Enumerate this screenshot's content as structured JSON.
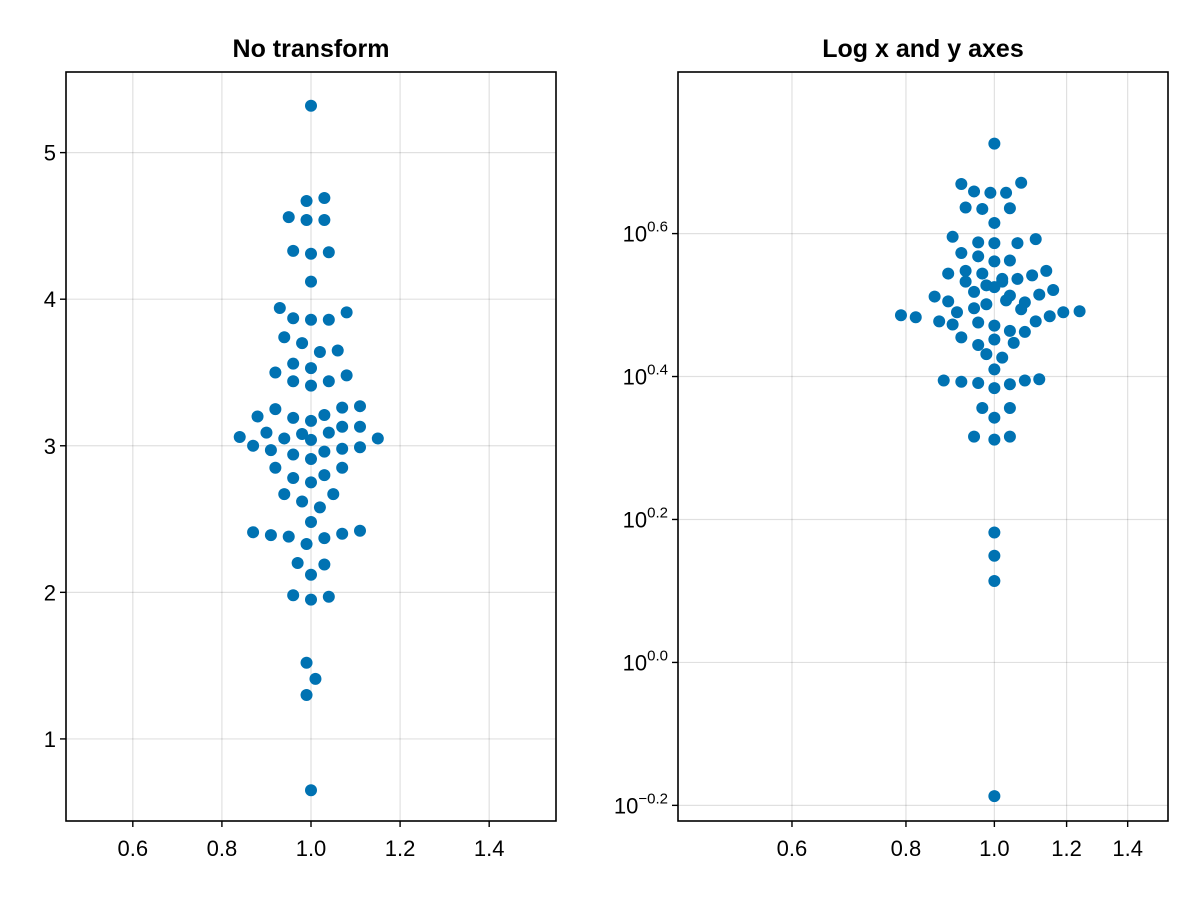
{
  "chart_data": [
    {
      "type": "scatter",
      "title": "No transform",
      "xscale": "linear",
      "yscale": "linear",
      "xlim": [
        0.45,
        1.55
      ],
      "ylim": [
        0.44,
        5.55
      ],
      "xticks": [
        0.6,
        0.8,
        1.0,
        1.2,
        1.4
      ],
      "xtick_labels": [
        "0.6",
        "0.8",
        "1.0",
        "1.2",
        "1.4"
      ],
      "yticks": [
        1,
        2,
        3,
        4,
        5
      ],
      "ytick_labels": [
        "1",
        "2",
        "3",
        "4",
        "5"
      ],
      "grid": true,
      "legend": false,
      "color": "#0072b2",
      "points": [
        {
          "x": 1.0,
          "y": 5.32
        },
        {
          "x": 0.99,
          "y": 4.67
        },
        {
          "x": 1.03,
          "y": 4.69
        },
        {
          "x": 0.95,
          "y": 4.56
        },
        {
          "x": 0.99,
          "y": 4.54
        },
        {
          "x": 1.03,
          "y": 4.54
        },
        {
          "x": 0.96,
          "y": 4.33
        },
        {
          "x": 1.0,
          "y": 4.31
        },
        {
          "x": 1.04,
          "y": 4.32
        },
        {
          "x": 1.0,
          "y": 4.12
        },
        {
          "x": 0.93,
          "y": 3.94
        },
        {
          "x": 0.96,
          "y": 3.87
        },
        {
          "x": 1.0,
          "y": 3.86
        },
        {
          "x": 1.04,
          "y": 3.86
        },
        {
          "x": 1.08,
          "y": 3.91
        },
        {
          "x": 0.94,
          "y": 3.74
        },
        {
          "x": 0.98,
          "y": 3.7
        },
        {
          "x": 1.02,
          "y": 3.64
        },
        {
          "x": 1.06,
          "y": 3.65
        },
        {
          "x": 0.96,
          "y": 3.56
        },
        {
          "x": 1.0,
          "y": 3.53
        },
        {
          "x": 0.92,
          "y": 3.5
        },
        {
          "x": 0.96,
          "y": 3.44
        },
        {
          "x": 1.0,
          "y": 3.41
        },
        {
          "x": 1.04,
          "y": 3.44
        },
        {
          "x": 1.08,
          "y": 3.48
        },
        {
          "x": 0.88,
          "y": 3.2
        },
        {
          "x": 0.92,
          "y": 3.25
        },
        {
          "x": 0.96,
          "y": 3.19
        },
        {
          "x": 1.0,
          "y": 3.17
        },
        {
          "x": 1.03,
          "y": 3.21
        },
        {
          "x": 1.07,
          "y": 3.26
        },
        {
          "x": 1.11,
          "y": 3.27
        },
        {
          "x": 0.84,
          "y": 3.06
        },
        {
          "x": 0.9,
          "y": 3.09
        },
        {
          "x": 0.94,
          "y": 3.05
        },
        {
          "x": 0.98,
          "y": 3.08
        },
        {
          "x": 1.0,
          "y": 3.04
        },
        {
          "x": 1.04,
          "y": 3.09
        },
        {
          "x": 1.07,
          "y": 3.13
        },
        {
          "x": 1.11,
          "y": 3.13
        },
        {
          "x": 1.15,
          "y": 3.05
        },
        {
          "x": 0.87,
          "y": 3.0
        },
        {
          "x": 0.91,
          "y": 2.97
        },
        {
          "x": 0.96,
          "y": 2.94
        },
        {
          "x": 1.0,
          "y": 2.91
        },
        {
          "x": 1.03,
          "y": 2.96
        },
        {
          "x": 1.07,
          "y": 2.98
        },
        {
          "x": 1.11,
          "y": 2.99
        },
        {
          "x": 0.92,
          "y": 2.85
        },
        {
          "x": 0.96,
          "y": 2.78
        },
        {
          "x": 1.0,
          "y": 2.75
        },
        {
          "x": 1.03,
          "y": 2.8
        },
        {
          "x": 1.07,
          "y": 2.85
        },
        {
          "x": 0.94,
          "y": 2.67
        },
        {
          "x": 0.98,
          "y": 2.62
        },
        {
          "x": 1.02,
          "y": 2.58
        },
        {
          "x": 1.05,
          "y": 2.67
        },
        {
          "x": 1.0,
          "y": 2.48
        },
        {
          "x": 0.87,
          "y": 2.41
        },
        {
          "x": 0.91,
          "y": 2.39
        },
        {
          "x": 0.95,
          "y": 2.38
        },
        {
          "x": 0.99,
          "y": 2.33
        },
        {
          "x": 1.03,
          "y": 2.37
        },
        {
          "x": 1.07,
          "y": 2.4
        },
        {
          "x": 1.11,
          "y": 2.42
        },
        {
          "x": 0.97,
          "y": 2.2
        },
        {
          "x": 1.0,
          "y": 2.12
        },
        {
          "x": 1.03,
          "y": 2.19
        },
        {
          "x": 0.96,
          "y": 1.98
        },
        {
          "x": 1.0,
          "y": 1.95
        },
        {
          "x": 1.04,
          "y": 1.97
        },
        {
          "x": 0.99,
          "y": 1.52
        },
        {
          "x": 1.01,
          "y": 1.41
        },
        {
          "x": 0.99,
          "y": 1.3
        },
        {
          "x": 1.0,
          "y": 0.65
        }
      ]
    },
    {
      "type": "scatter",
      "title": "Log x and y axes",
      "xscale": "log10",
      "yscale": "log10",
      "xlim": [
        0.45,
        1.55
      ],
      "ylim": [
        0.6,
        6.7
      ],
      "xticks": [
        0.6,
        0.8,
        1.0,
        1.2,
        1.4
      ],
      "xtick_labels": [
        "0.6",
        "0.8",
        "1.0",
        "1.2",
        "1.4"
      ],
      "yticks": [
        0.631,
        1.0,
        1.585,
        2.512,
        3.981
      ],
      "ytick_labels": [
        {
          "base": "10",
          "exp": "−0.2"
        },
        {
          "base": "10",
          "exp": "0.0"
        },
        {
          "base": "10",
          "exp": "0.2"
        },
        {
          "base": "10",
          "exp": "0.4"
        },
        {
          "base": "10",
          "exp": "0.6"
        }
      ],
      "grid": true,
      "legend": false,
      "color": "#0072b2",
      "points": [
        {
          "x": 1.0,
          "y": 5.32
        },
        {
          "x": 0.92,
          "y": 4.67
        },
        {
          "x": 1.07,
          "y": 4.69
        },
        {
          "x": 0.95,
          "y": 4.56
        },
        {
          "x": 0.99,
          "y": 4.54
        },
        {
          "x": 1.03,
          "y": 4.54
        },
        {
          "x": 0.93,
          "y": 4.33
        },
        {
          "x": 0.97,
          "y": 4.31
        },
        {
          "x": 1.04,
          "y": 4.32
        },
        {
          "x": 1.0,
          "y": 4.12
        },
        {
          "x": 0.9,
          "y": 3.94
        },
        {
          "x": 0.96,
          "y": 3.87
        },
        {
          "x": 1.0,
          "y": 3.86
        },
        {
          "x": 1.06,
          "y": 3.86
        },
        {
          "x": 1.11,
          "y": 3.91
        },
        {
          "x": 0.92,
          "y": 3.74
        },
        {
          "x": 0.96,
          "y": 3.7
        },
        {
          "x": 1.0,
          "y": 3.64
        },
        {
          "x": 1.04,
          "y": 3.65
        },
        {
          "x": 0.89,
          "y": 3.5
        },
        {
          "x": 0.93,
          "y": 3.53
        },
        {
          "x": 0.97,
          "y": 3.5
        },
        {
          "x": 1.02,
          "y": 3.44
        },
        {
          "x": 1.06,
          "y": 3.44
        },
        {
          "x": 1.1,
          "y": 3.48
        },
        {
          "x": 0.93,
          "y": 3.41
        },
        {
          "x": 1.02,
          "y": 3.41
        },
        {
          "x": 0.98,
          "y": 3.37
        },
        {
          "x": 1.14,
          "y": 3.53
        },
        {
          "x": 0.86,
          "y": 3.25
        },
        {
          "x": 0.89,
          "y": 3.2
        },
        {
          "x": 0.95,
          "y": 3.3
        },
        {
          "x": 1.0,
          "y": 3.35
        },
        {
          "x": 1.04,
          "y": 3.26
        },
        {
          "x": 1.08,
          "y": 3.19
        },
        {
          "x": 1.12,
          "y": 3.27
        },
        {
          "x": 1.16,
          "y": 3.32
        },
        {
          "x": 0.79,
          "y": 3.06
        },
        {
          "x": 0.82,
          "y": 3.04
        },
        {
          "x": 0.87,
          "y": 3.0
        },
        {
          "x": 0.91,
          "y": 3.09
        },
        {
          "x": 0.95,
          "y": 3.13
        },
        {
          "x": 0.98,
          "y": 3.17
        },
        {
          "x": 1.03,
          "y": 3.21
        },
        {
          "x": 1.07,
          "y": 3.12
        },
        {
          "x": 1.15,
          "y": 3.05
        },
        {
          "x": 1.19,
          "y": 3.09
        },
        {
          "x": 1.24,
          "y": 3.1
        },
        {
          "x": 0.9,
          "y": 2.97
        },
        {
          "x": 0.96,
          "y": 2.99
        },
        {
          "x": 1.0,
          "y": 2.96
        },
        {
          "x": 1.04,
          "y": 2.91
        },
        {
          "x": 1.08,
          "y": 2.9
        },
        {
          "x": 1.11,
          "y": 3.0
        },
        {
          "x": 0.92,
          "y": 2.85
        },
        {
          "x": 0.96,
          "y": 2.78
        },
        {
          "x": 1.0,
          "y": 2.83
        },
        {
          "x": 1.05,
          "y": 2.8
        },
        {
          "x": 0.98,
          "y": 2.7
        },
        {
          "x": 1.02,
          "y": 2.67
        },
        {
          "x": 0.88,
          "y": 2.48
        },
        {
          "x": 0.92,
          "y": 2.47
        },
        {
          "x": 0.96,
          "y": 2.46
        },
        {
          "x": 1.0,
          "y": 2.42
        },
        {
          "x": 1.04,
          "y": 2.45
        },
        {
          "x": 1.08,
          "y": 2.48
        },
        {
          "x": 1.12,
          "y": 2.49
        },
        {
          "x": 1.0,
          "y": 2.57
        },
        {
          "x": 0.97,
          "y": 2.27
        },
        {
          "x": 1.0,
          "y": 2.2
        },
        {
          "x": 1.04,
          "y": 2.27
        },
        {
          "x": 0.95,
          "y": 2.07
        },
        {
          "x": 1.0,
          "y": 2.05
        },
        {
          "x": 1.04,
          "y": 2.07
        },
        {
          "x": 1.0,
          "y": 1.52
        },
        {
          "x": 1.0,
          "y": 1.41
        },
        {
          "x": 1.0,
          "y": 1.3
        },
        {
          "x": 1.0,
          "y": 0.65
        }
      ]
    }
  ]
}
